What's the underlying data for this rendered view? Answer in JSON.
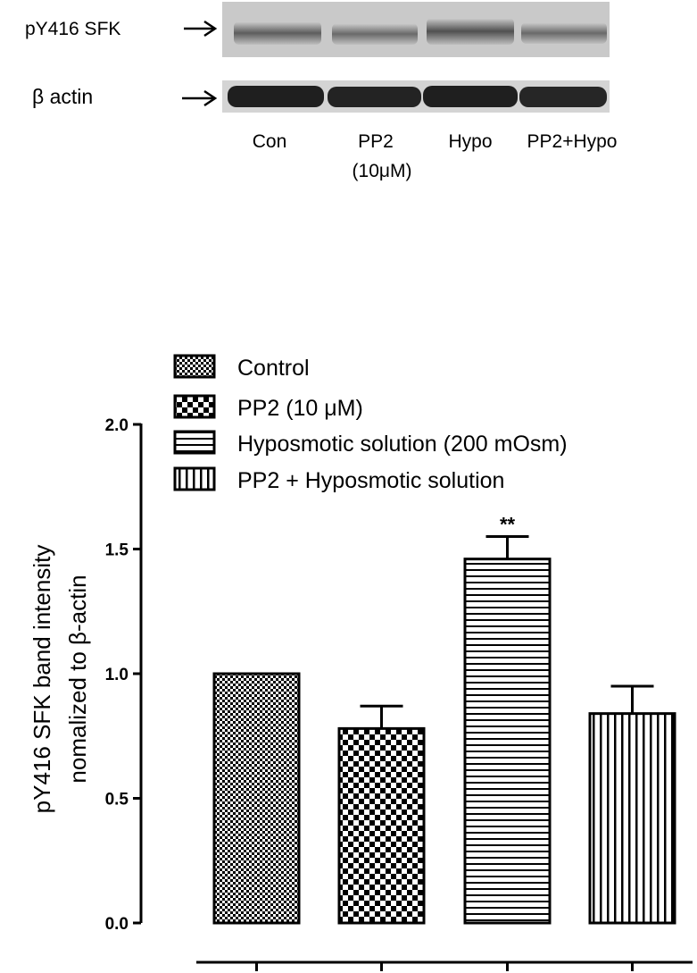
{
  "blot": {
    "rows": [
      {
        "label": "pY416 SFK"
      },
      {
        "label": "β actin"
      }
    ],
    "lanes": [
      {
        "line1": "Con",
        "line2": ""
      },
      {
        "line1": "PP2",
        "line2": "(10μM)"
      },
      {
        "line1": "Hypo",
        "line2": ""
      },
      {
        "line1": "PP2+Hypo",
        "line2": ""
      }
    ]
  },
  "chart_data": {
    "type": "bar",
    "title": "",
    "xlabel": "",
    "ylabel_lines": [
      "pY416 SFK band intensity",
      "nomalized to β-actin"
    ],
    "ylim": [
      0,
      2.0
    ],
    "yticks": [
      "0.0",
      "0.5",
      "1.0",
      "1.5",
      "2.0"
    ],
    "legend_position": "top",
    "categories": [
      "Control",
      "PP2 (10 μM)",
      "Hyposmotic solution (200 mOsm)",
      "PP2 + Hyposmotic solution"
    ],
    "values": [
      1.0,
      0.78,
      1.46,
      0.84
    ],
    "errors": [
      0,
      0.09,
      0.09,
      0.11
    ],
    "annotations": [
      "",
      "",
      "**",
      ""
    ],
    "patterns": [
      "fine-check",
      "checker",
      "horizontal-lines",
      "vertical-lines"
    ]
  }
}
